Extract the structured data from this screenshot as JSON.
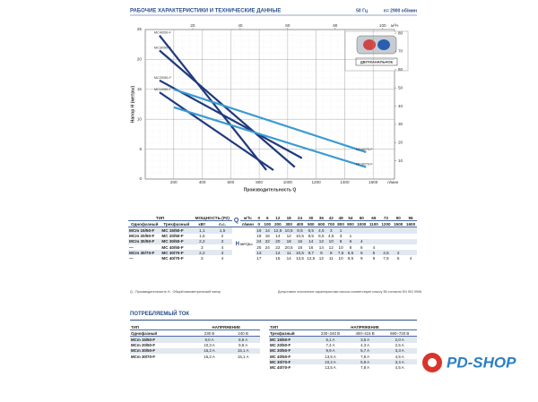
{
  "header": {
    "title": "РАБОЧИЕ ХАРАКТЕРИСТИКИ И ТЕХНИЧЕСКИЕ ДАННЫЕ",
    "frequency": "50 Гц",
    "speed": "n= 2900 об/мин"
  },
  "chart_data": {
    "type": "line",
    "y_label": "Напор H (метры)",
    "x_label": "Производительность Q",
    "x_unit": "л/мин",
    "x2_unit": "м³/ч",
    "xlim": [
      0,
      1750
    ],
    "xticks": [
      200,
      400,
      600,
      800,
      1000,
      1200,
      1400,
      1600
    ],
    "x2lim": [
      0,
      105
    ],
    "x2ticks": [
      20,
      40,
      60,
      80,
      100
    ],
    "ylim": [
      0,
      25
    ],
    "yticks": [
      0,
      5,
      10,
      15,
      20,
      25
    ],
    "y2lim": [
      0,
      82
    ],
    "y2ticks": [
      10,
      20,
      30,
      40,
      50,
      60,
      70,
      80
    ],
    "grid": true,
    "series": [
      {
        "name": "MC40/50-F",
        "color": "#1f3a7d",
        "x": [
          100,
          850
        ],
        "values": [
          24,
          1.5
        ]
      },
      {
        "name": "MC30/50-F",
        "color": "#1f3a7d",
        "x": [
          100,
          1050
        ],
        "values": [
          21.5,
          2
        ]
      },
      {
        "name": "MC20/50-F",
        "color": "#1f3a7d",
        "x": [
          100,
          1100
        ],
        "values": [
          16.5,
          3.5
        ]
      },
      {
        "name": "MC15/50-F",
        "color": "#1f3a7d",
        "x": [
          100,
          900
        ],
        "values": [
          14.5,
          1.5
        ]
      },
      {
        "name": "MC40/70-F",
        "color": "#3a9bd0",
        "x": [
          200,
          1550
        ],
        "values": [
          15,
          4.5
        ]
      },
      {
        "name": "MC30/70-F",
        "color": "#3a9bd0",
        "x": [
          200,
          1550
        ],
        "values": [
          12,
          2
        ]
      }
    ]
  },
  "inset_label": "ДВУХКАНАЛЬНОЕ",
  "table": {
    "type_header": "ТИП",
    "power_header": "МОЩНОСТЬ (P2)",
    "single": "Однофазный",
    "three": "Трехфазный",
    "kw": "кВт",
    "hp": "л.с.",
    "q_label": "Q",
    "q_units": [
      "м³/ч",
      "л/мин"
    ],
    "h_label": "H",
    "h_unit": "метры",
    "q_m3h": [
      0,
      6,
      12,
      18,
      24,
      30,
      36,
      42,
      48,
      54,
      60,
      66,
      72,
      90,
      96
    ],
    "q_lmin": [
      0,
      100,
      200,
      300,
      400,
      500,
      600,
      700,
      800,
      900,
      1000,
      1100,
      1200,
      1500,
      1600
    ],
    "rows": [
      {
        "single": "MCm 15/50-F",
        "three": "MC 15/50-F",
        "kw": "1,1",
        "hp": "1,5",
        "head": [
          "16",
          "14",
          "12,5",
          "10,5",
          "8,5",
          "6,5",
          "4,5",
          "3",
          "1",
          null,
          null,
          null,
          null,
          null,
          null
        ]
      },
      {
        "single": "MCm 20/50-F",
        "three": "MC 20/50-F",
        "kw": "1,5",
        "hp": "2",
        "head": [
          "18",
          "16",
          "14",
          "12",
          "10,5",
          "8,5",
          "6,5",
          "4,5",
          "3",
          "1",
          null,
          null,
          null,
          null,
          null
        ]
      },
      {
        "single": "MCm 30/50-F",
        "three": "MC 30/50-F",
        "kw": "2,2",
        "hp": "3",
        "head": [
          "24",
          "22",
          "20",
          "18",
          "16",
          "14",
          "12",
          "10",
          "8",
          "6",
          "4",
          null,
          null,
          null,
          null
        ]
      },
      {
        "single": "—",
        "three": "MC 40/50-F",
        "kw": "3",
        "hp": "4",
        "head": [
          "25",
          "24",
          "22",
          "20,5",
          "18",
          "16",
          "14",
          "12",
          "10",
          "8",
          "6",
          "4",
          null,
          null,
          null
        ]
      },
      {
        "single": "MCm 30/70-F",
        "three": "MC 30/70-F",
        "kw": "2,2",
        "hp": "3",
        "head": [
          "13",
          null,
          "12",
          "11",
          "10,5",
          "9,7",
          "9",
          "8",
          "7,5",
          "6,5",
          "6",
          "5",
          "4,5",
          "2",
          null
        ]
      },
      {
        "single": "—",
        "three": "MC 40/70-F",
        "kw": "3",
        "hp": "4",
        "head": [
          "17",
          null,
          "15",
          "14",
          "13,5",
          "12,5",
          "12",
          "11",
          "10",
          "9,5",
          "9",
          "8",
          "7,5",
          "5",
          "4"
        ]
      }
    ]
  },
  "notes": [
    "Q - Производительность   H - Общий манометрический напор",
    "Допустимое отклонение характеристики насоса соответствует классу 3B согласно EN ISO 9906."
  ],
  "current": {
    "title": "ПОТРЕБЛЯЕМЫЙ ТОК",
    "single": {
      "type_header": "ТИП",
      "voltage_header": "НАПРЯЖЕНИЕ",
      "kind": "Однофазный",
      "voltages": [
        "230 В",
        "240 В"
      ],
      "rows": [
        [
          "MCm 15/50-F",
          "9,0 A",
          "8,9 A"
        ],
        [
          "MCm 20/50-F",
          "10,3 A",
          "9,8 A"
        ],
        [
          "MCm 30/50-F",
          "15,2 A",
          "15,1 A"
        ],
        [
          "MCm 30/70-F",
          "15,2 A",
          "15,1 A"
        ]
      ]
    },
    "three": {
      "type_header": "ТИП",
      "voltage_header": "НАПРЯЖЕНИЕ",
      "kind": "Трехфазный",
      "voltages": [
        "230÷240 В",
        "400÷415 В",
        "690÷720 В"
      ],
      "rows": [
        [
          "MC 15/50-F",
          "6,1 A",
          "3,5 A",
          "2,0 A"
        ],
        [
          "MC 20/50-F",
          "7,4 A",
          "4,3 A",
          "2,5 A"
        ],
        [
          "MC 30/50-F",
          "9,9 A",
          "5,7 A",
          "3,3 A"
        ],
        [
          "MC 40/50-F",
          "13,5 A",
          "7,8 A",
          "4,5 A"
        ],
        [
          "MC 30/70-F",
          "10,2 A",
          "5,9 A",
          "3,4 A"
        ],
        [
          "MC 40/70-F",
          "13,5 A",
          "7,8 A",
          "4,5 A"
        ]
      ]
    }
  },
  "logo": "PD-SHOP"
}
